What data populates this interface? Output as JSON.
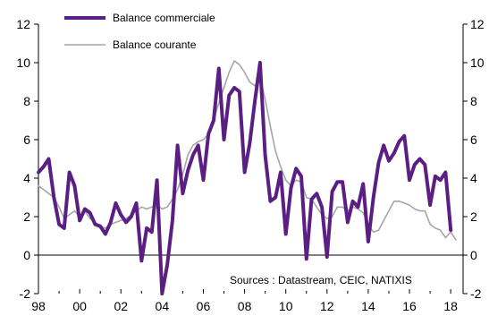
{
  "chart_data": {
    "type": "line",
    "title": "",
    "xlabel": "",
    "ylabel": "",
    "source_note": "Sources : Datastream, CEIC, NATIXIS",
    "x_ticks": [
      "98",
      "00",
      "02",
      "04",
      "06",
      "08",
      "10",
      "12",
      "14",
      "16",
      "18"
    ],
    "x_range": [
      1998,
      2018.6
    ],
    "y_ticks_left": [
      "-2",
      "0",
      "2",
      "4",
      "6",
      "8",
      "10",
      "12"
    ],
    "y_ticks_right": [
      "-2",
      "0",
      "2",
      "4",
      "6",
      "8",
      "10",
      "12"
    ],
    "ylim": [
      -2,
      12
    ],
    "grid": false,
    "legend_position": "top-left",
    "series": [
      {
        "name": "Balance commerciale",
        "color": "#5b1f83",
        "points": [
          [
            1998.0,
            4.3
          ],
          [
            1998.25,
            4.6
          ],
          [
            1998.5,
            5.0
          ],
          [
            1998.75,
            3.0
          ],
          [
            1999.0,
            1.6
          ],
          [
            1999.25,
            1.4
          ],
          [
            1999.5,
            4.3
          ],
          [
            1999.75,
            3.6
          ],
          [
            2000.0,
            1.8
          ],
          [
            2000.25,
            2.4
          ],
          [
            2000.5,
            2.2
          ],
          [
            2000.75,
            1.6
          ],
          [
            2001.0,
            1.5
          ],
          [
            2001.25,
            1.1
          ],
          [
            2001.5,
            1.7
          ],
          [
            2001.75,
            2.7
          ],
          [
            2002.0,
            2.1
          ],
          [
            2002.25,
            1.7
          ],
          [
            2002.5,
            2.0
          ],
          [
            2002.75,
            2.7
          ],
          [
            2003.0,
            -0.3
          ],
          [
            2003.25,
            1.4
          ],
          [
            2003.5,
            1.2
          ],
          [
            2003.75,
            3.9
          ],
          [
            2004.0,
            -2.0
          ],
          [
            2004.25,
            -0.5
          ],
          [
            2004.5,
            1.8
          ],
          [
            2004.75,
            5.7
          ],
          [
            2005.0,
            3.2
          ],
          [
            2005.25,
            4.4
          ],
          [
            2005.5,
            5.2
          ],
          [
            2005.75,
            5.7
          ],
          [
            2006.0,
            3.9
          ],
          [
            2006.25,
            6.3
          ],
          [
            2006.5,
            7.0
          ],
          [
            2006.75,
            9.7
          ],
          [
            2007.0,
            6.0
          ],
          [
            2007.25,
            8.3
          ],
          [
            2007.5,
            8.7
          ],
          [
            2007.75,
            8.5
          ],
          [
            2008.0,
            4.3
          ],
          [
            2008.25,
            5.8
          ],
          [
            2008.5,
            8.0
          ],
          [
            2008.75,
            10.0
          ],
          [
            2009.0,
            5.2
          ],
          [
            2009.25,
            2.8
          ],
          [
            2009.5,
            3.0
          ],
          [
            2009.75,
            4.3
          ],
          [
            2010.0,
            1.1
          ],
          [
            2010.25,
            3.5
          ],
          [
            2010.5,
            4.5
          ],
          [
            2010.75,
            4.1
          ],
          [
            2011.0,
            -0.2
          ],
          [
            2011.25,
            2.9
          ],
          [
            2011.5,
            3.2
          ],
          [
            2011.75,
            2.5
          ],
          [
            2012.0,
            -0.1
          ],
          [
            2012.25,
            3.3
          ],
          [
            2012.5,
            3.8
          ],
          [
            2012.75,
            3.8
          ],
          [
            2013.0,
            1.7
          ],
          [
            2013.25,
            2.8
          ],
          [
            2013.5,
            2.5
          ],
          [
            2013.75,
            3.7
          ],
          [
            2014.0,
            0.7
          ],
          [
            2014.25,
            3.0
          ],
          [
            2014.5,
            4.8
          ],
          [
            2014.75,
            5.7
          ],
          [
            2015.0,
            4.9
          ],
          [
            2015.25,
            5.3
          ],
          [
            2015.5,
            5.9
          ],
          [
            2015.75,
            6.2
          ],
          [
            2016.0,
            3.9
          ],
          [
            2016.25,
            4.7
          ],
          [
            2016.5,
            5.0
          ],
          [
            2016.75,
            4.7
          ],
          [
            2017.0,
            2.6
          ],
          [
            2017.25,
            4.1
          ],
          [
            2017.5,
            3.9
          ],
          [
            2017.75,
            4.3
          ],
          [
            2018.0,
            1.3
          ]
        ]
      },
      {
        "name": "Balance courante",
        "color": "#a6a6a6",
        "points": [
          [
            1998.0,
            3.6
          ],
          [
            1998.25,
            3.4
          ],
          [
            1998.5,
            3.2
          ],
          [
            1998.75,
            3.0
          ],
          [
            1999.0,
            2.5
          ],
          [
            1999.25,
            1.9
          ],
          [
            1999.5,
            2.1
          ],
          [
            1999.75,
            2.3
          ],
          [
            2000.0,
            2.0
          ],
          [
            2000.25,
            2.3
          ],
          [
            2000.5,
            1.9
          ],
          [
            2000.75,
            1.7
          ],
          [
            2001.0,
            1.5
          ],
          [
            2001.25,
            1.4
          ],
          [
            2001.5,
            1.6
          ],
          [
            2001.75,
            1.7
          ],
          [
            2002.0,
            1.8
          ],
          [
            2002.25,
            1.9
          ],
          [
            2002.5,
            2.1
          ],
          [
            2002.75,
            2.3
          ],
          [
            2003.0,
            2.5
          ],
          [
            2003.25,
            2.4
          ],
          [
            2003.5,
            2.5
          ],
          [
            2003.75,
            2.6
          ],
          [
            2004.0,
            2.4
          ],
          [
            2004.25,
            2.5
          ],
          [
            2004.5,
            2.9
          ],
          [
            2004.75,
            3.4
          ],
          [
            2005.0,
            4.2
          ],
          [
            2005.25,
            5.2
          ],
          [
            2005.5,
            5.7
          ],
          [
            2005.75,
            5.9
          ],
          [
            2006.0,
            6.0
          ],
          [
            2006.25,
            6.3
          ],
          [
            2006.5,
            7.0
          ],
          [
            2006.75,
            7.9
          ],
          [
            2007.0,
            8.7
          ],
          [
            2007.25,
            9.5
          ],
          [
            2007.5,
            10.1
          ],
          [
            2007.75,
            9.9
          ],
          [
            2008.0,
            9.5
          ],
          [
            2008.25,
            9.0
          ],
          [
            2008.5,
            8.8
          ],
          [
            2008.75,
            9.2
          ],
          [
            2009.0,
            8.1
          ],
          [
            2009.25,
            6.7
          ],
          [
            2009.5,
            5.4
          ],
          [
            2009.75,
            4.6
          ],
          [
            2010.0,
            3.9
          ],
          [
            2010.25,
            3.6
          ],
          [
            2010.5,
            3.9
          ],
          [
            2010.75,
            3.8
          ],
          [
            2011.0,
            3.0
          ],
          [
            2011.25,
            2.9
          ],
          [
            2011.5,
            2.5
          ],
          [
            2011.75,
            2.1
          ],
          [
            2012.0,
            1.9
          ],
          [
            2012.25,
            2.0
          ],
          [
            2012.5,
            2.5
          ],
          [
            2012.75,
            2.5
          ],
          [
            2013.0,
            2.3
          ],
          [
            2013.25,
            2.5
          ],
          [
            2013.5,
            2.4
          ],
          [
            2013.75,
            2.2
          ],
          [
            2014.0,
            1.6
          ],
          [
            2014.25,
            1.2
          ],
          [
            2014.5,
            1.3
          ],
          [
            2014.75,
            1.8
          ],
          [
            2015.0,
            2.3
          ],
          [
            2015.25,
            2.8
          ],
          [
            2015.5,
            2.8
          ],
          [
            2015.75,
            2.7
          ],
          [
            2016.0,
            2.6
          ],
          [
            2016.25,
            2.4
          ],
          [
            2016.5,
            2.3
          ],
          [
            2016.75,
            2.3
          ],
          [
            2017.0,
            1.6
          ],
          [
            2017.25,
            1.4
          ],
          [
            2017.5,
            1.3
          ],
          [
            2017.75,
            0.9
          ],
          [
            2018.0,
            1.2
          ],
          [
            2018.25,
            0.8
          ]
        ]
      }
    ]
  }
}
